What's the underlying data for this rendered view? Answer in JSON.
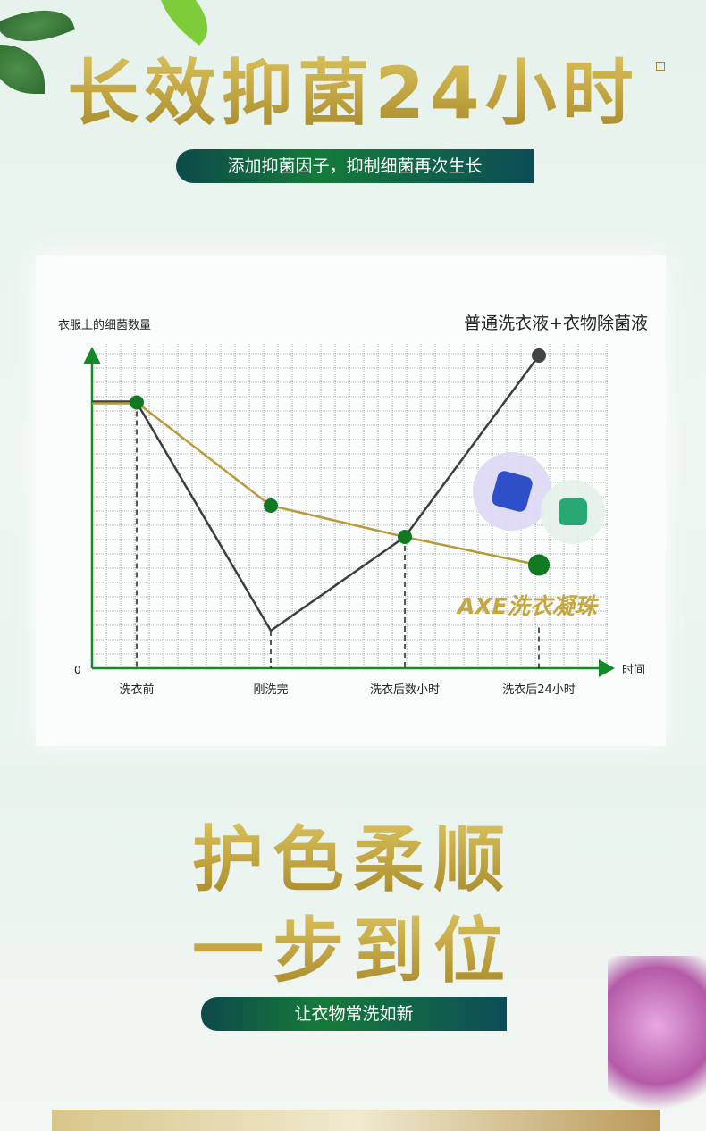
{
  "header": {
    "title": "长效抑菌24小时",
    "subtitle": "添加抑菌因子，抑制细菌再次生长"
  },
  "section2": {
    "title_line1": "护色柔顺",
    "title_line2": "一步到位",
    "subtitle": "让衣物常洗如新"
  },
  "colors": {
    "gold": "#c4a740",
    "green": "#0f7a22",
    "dark_line": "#3e3e42",
    "axis": "#138a2a"
  },
  "chart_data": {
    "type": "line",
    "ylabel": "衣服上的细菌数量",
    "xlabel": "时间",
    "y_origin_label": "0",
    "categories": [
      "洗衣前",
      "刚洗完",
      "洗衣后数小时",
      "洗衣后24小时"
    ],
    "ylim": [
      0,
      100
    ],
    "grid": true,
    "series": [
      {
        "name": "普通洗衣液+衣物除菌液",
        "color": "#3e3e42",
        "values": [
          85,
          12,
          42,
          100
        ]
      },
      {
        "name": "AXE洗衣凝珠",
        "color": "#b89a3a",
        "values": [
          85,
          52,
          42,
          33
        ]
      }
    ]
  }
}
